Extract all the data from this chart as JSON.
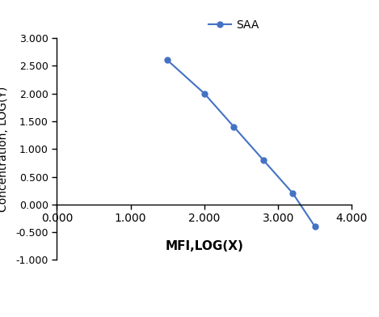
{
  "x": [
    1.5,
    2.0,
    2.4,
    2.8,
    3.2,
    3.5
  ],
  "y": [
    2.6,
    2.0,
    1.4,
    0.8,
    0.2,
    -0.4
  ],
  "line_color": "#4472C4",
  "marker": "o",
  "marker_size": 5,
  "line_width": 1.5,
  "xlabel": "MFI,LOG(X)",
  "ylabel": "Concentration, LOG(Y)",
  "legend_label": "SAA",
  "xlim": [
    0.0,
    4.0
  ],
  "ylim": [
    -1.0,
    3.0
  ],
  "xticks": [
    0.0,
    1.0,
    2.0,
    3.0,
    4.0
  ],
  "yticks": [
    -1.0,
    -0.5,
    0.0,
    0.5,
    1.0,
    1.5,
    2.0,
    2.5,
    3.0
  ],
  "xtick_labels": [
    "0.000",
    "1.000",
    "2.000",
    "3.000",
    "4.000"
  ],
  "ytick_labels": [
    "-1.000",
    "-0.500",
    "0.000",
    "0.500",
    "1.000",
    "1.500",
    "2.000",
    "2.500",
    "3.000"
  ],
  "xlabel_fontsize": 11,
  "ylabel_fontsize": 10,
  "tick_fontsize": 9,
  "legend_fontsize": 10,
  "background_color": "#ffffff"
}
